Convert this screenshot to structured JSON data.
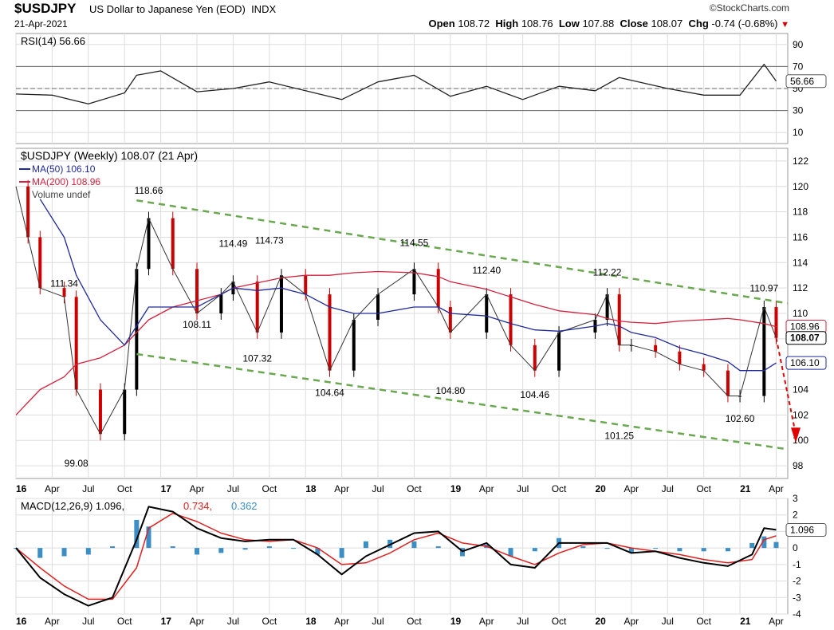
{
  "header": {
    "symbol": "$USDJPY",
    "description": "US Dollar to Japanese Yen (EOD)",
    "exchange": "INDX",
    "date": "21-Apr-2021",
    "logo": "©StockCharts.com",
    "open_label": "Open",
    "open": "108.72",
    "high_label": "High",
    "high": "108.76",
    "low_label": "Low",
    "low": "107.88",
    "close_label": "Close",
    "close": "108.07",
    "chg_label": "Chg",
    "chg": "-0.74 (-0.68%)",
    "chg_icon": "down-triangle-icon"
  },
  "colors": {
    "price_up": "#000000",
    "price_down": "#cc0000",
    "ma50": "#1f2a9c",
    "ma200": "#d4213d",
    "channel": "#6aa84f",
    "projection": "#e00000",
    "macd": "#000000",
    "signal": "#e02020",
    "histogram": "#3b8fc4",
    "grid": "#dddddd"
  },
  "chart_data": [
    {
      "type": "line",
      "panel": "rsi",
      "legend": "RSI(14) 56.66",
      "current_value": "56.66",
      "ylim": [
        0,
        100
      ],
      "yticks": [
        10,
        30,
        50,
        70,
        90
      ],
      "reference_lines": [
        30,
        50,
        70
      ],
      "x": [
        "2016-01",
        "2016-04",
        "2016-07",
        "2016-10",
        "2016-11",
        "2017-01",
        "2017-04",
        "2017-07",
        "2017-10",
        "2018-01",
        "2018-04",
        "2018-07",
        "2018-10",
        "2019-01",
        "2019-04",
        "2019-07",
        "2019-10",
        "2020-01",
        "2020-03",
        "2020-07",
        "2020-10",
        "2021-01",
        "2021-03",
        "2021-04"
      ],
      "values": [
        45,
        44,
        36,
        46,
        62,
        66,
        47,
        50,
        56,
        48,
        40,
        56,
        62,
        43,
        52,
        40,
        52,
        48,
        60,
        50,
        44,
        44,
        72,
        56.66
      ]
    },
    {
      "type": "line",
      "panel": "price",
      "legend": "$USDJPY (Weekly) 108.07 (21 Apr)",
      "ma50_label": "MA(50) 106.10",
      "ma200_label": "MA(200) 108.96",
      "volume_label": "Volume undef",
      "ylim": [
        97,
        123
      ],
      "yticks": [
        98,
        100,
        102,
        104,
        106,
        108,
        110,
        112,
        114,
        116,
        118,
        120,
        122
      ],
      "x_tick_labels": [
        "16",
        "Apr",
        "Jul",
        "Oct",
        "17",
        "Apr",
        "Jul",
        "Oct",
        "18",
        "Apr",
        "Jul",
        "Oct",
        "19",
        "Apr",
        "Jul",
        "Oct",
        "20",
        "Apr",
        "Jul",
        "Oct",
        "21",
        "Apr"
      ],
      "x": [
        "2016-01",
        "2016-02",
        "2016-03",
        "2016-05",
        "2016-06",
        "2016-08",
        "2016-10",
        "2016-11",
        "2016-12",
        "2017-02",
        "2017-04",
        "2017-06",
        "2017-07",
        "2017-09",
        "2017-11",
        "2018-01",
        "2018-03",
        "2018-05",
        "2018-07",
        "2018-10",
        "2018-12",
        "2019-01",
        "2019-04",
        "2019-06",
        "2019-08",
        "2019-10",
        "2020-01",
        "2020-02",
        "2020-03",
        "2020-04",
        "2020-06",
        "2020-08",
        "2020-10",
        "2020-12",
        "2021-01",
        "2021-03",
        "2021-04"
      ],
      "close": [
        120,
        116,
        112,
        111.3,
        104,
        100.5,
        104,
        113.5,
        117.5,
        113.5,
        110,
        111.5,
        112.5,
        108.5,
        113,
        111.5,
        105.5,
        109.5,
        111.5,
        113.5,
        110.5,
        108.5,
        111.5,
        107.5,
        105.5,
        108.5,
        109.5,
        111.5,
        107.5,
        107.5,
        107,
        106,
        105.5,
        103.5,
        103.5,
        110.5,
        108.07
      ],
      "ma50": [
        null,
        null,
        119,
        116,
        113,
        109.5,
        107.5,
        109,
        110.5,
        110.5,
        110.5,
        111.5,
        112,
        111.8,
        112,
        111.5,
        110.5,
        110,
        110,
        110.5,
        110.5,
        110,
        109.8,
        109.2,
        108.7,
        108.6,
        109,
        109.2,
        109,
        108.5,
        108.1,
        107.3,
        106.8,
        106.2,
        105.5,
        105.5,
        106.1
      ],
      "ma200": [
        102,
        103,
        104,
        105,
        106,
        106.5,
        107.5,
        108.5,
        109.5,
        110.5,
        111,
        111.5,
        112,
        112.4,
        112.8,
        113,
        113,
        113.2,
        113.3,
        113.2,
        112.9,
        112.5,
        111.9,
        111.3,
        110.7,
        110.2,
        109.9,
        109.6,
        109.4,
        109.3,
        109.2,
        109.4,
        109.5,
        109.6,
        109.5,
        109.2,
        108.96
      ],
      "annotations": [
        {
          "label": "118.66",
          "x": "2016-12",
          "y": 118.66
        },
        {
          "label": "111.34",
          "x": "2016-05",
          "y": 111.34
        },
        {
          "label": "99.08",
          "x": "2016-06",
          "y": 99.08
        },
        {
          "label": "114.49",
          "x": "2017-07",
          "y": 114.49
        },
        {
          "label": "108.11",
          "x": "2017-04",
          "y": 108.11
        },
        {
          "label": "114.73",
          "x": "2017-10",
          "y": 114.73
        },
        {
          "label": "107.32",
          "x": "2017-09",
          "y": 107.32
        },
        {
          "label": "104.64",
          "x": "2018-03",
          "y": 104.64
        },
        {
          "label": "114.55",
          "x": "2018-10",
          "y": 114.55
        },
        {
          "label": "104.80",
          "x": "2019-01",
          "y": 104.8
        },
        {
          "label": "112.40",
          "x": "2019-04",
          "y": 112.4
        },
        {
          "label": "104.46",
          "x": "2019-08",
          "y": 104.46
        },
        {
          "label": "112.22",
          "x": "2020-02",
          "y": 112.22
        },
        {
          "label": "101.25",
          "x": "2020-03",
          "y": 101.25
        },
        {
          "label": "102.60",
          "x": "2021-01",
          "y": 102.6
        },
        {
          "label": "110.97",
          "x": "2021-03",
          "y": 110.97
        }
      ],
      "right_axis_labels": [
        "108.96",
        "108.07",
        "106.10"
      ]
    },
    {
      "type": "line",
      "panel": "macd",
      "legend_macd": "MACD(12,26,9)",
      "legend_macd_value": "1.096",
      "legend_signal_value": "0.734",
      "legend_hist_value": "0.362",
      "current_value": "1.096",
      "ylim": [
        -4,
        3
      ],
      "yticks": [
        -4,
        -3,
        -2,
        -1,
        0,
        1,
        2,
        3
      ],
      "x_tick_labels": [
        "16",
        "Apr",
        "Jul",
        "Oct",
        "17",
        "Apr",
        "Jul",
        "Oct",
        "18",
        "Apr",
        "Jul",
        "Oct",
        "19",
        "Apr",
        "Jul",
        "Oct",
        "20",
        "Apr",
        "Jul",
        "Oct",
        "21",
        "Apr"
      ],
      "x": [
        "2016-01",
        "2016-03",
        "2016-05",
        "2016-07",
        "2016-09",
        "2016-11",
        "2016-12",
        "2017-02",
        "2017-04",
        "2017-06",
        "2017-08",
        "2017-10",
        "2017-12",
        "2018-02",
        "2018-04",
        "2018-06",
        "2018-08",
        "2018-10",
        "2018-12",
        "2019-02",
        "2019-04",
        "2019-06",
        "2019-08",
        "2019-10",
        "2019-12",
        "2020-02",
        "2020-04",
        "2020-06",
        "2020-08",
        "2020-10",
        "2020-12",
        "2021-02",
        "2021-03",
        "2021-04"
      ],
      "macd": [
        0,
        -1.8,
        -2.8,
        -3.5,
        -3,
        0.5,
        2.5,
        2.2,
        1.2,
        0.6,
        0.4,
        0.5,
        0.5,
        -0.4,
        -1.6,
        -0.5,
        0.2,
        0.9,
        1,
        -0.2,
        0.3,
        -1,
        -1.2,
        0.3,
        0.3,
        0.3,
        -0.3,
        -0.2,
        -0.6,
        -0.9,
        -1.1,
        -0.4,
        1.2,
        1.096
      ],
      "signal": [
        0,
        -1.2,
        -2.3,
        -3.1,
        -3.1,
        -1.2,
        1.2,
        2.1,
        1.6,
        0.9,
        0.5,
        0.4,
        0.5,
        0,
        -1,
        -0.9,
        -0.3,
        0.5,
        0.9,
        0.3,
        0.1,
        -0.5,
        -1,
        -0.3,
        0.2,
        0.3,
        0,
        -0.2,
        -0.4,
        -0.7,
        -0.9,
        -0.7,
        0.5,
        0.734
      ]
    }
  ]
}
